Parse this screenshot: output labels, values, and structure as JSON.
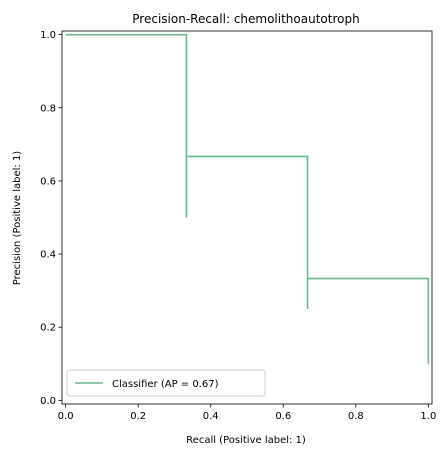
{
  "chart_data": {
    "type": "line",
    "title": "Precision-Recall: chemolithoautotroph",
    "xlabel": "Recall (Positive label: 1)",
    "ylabel": "Precision (Positive label: 1)",
    "xlim": [
      -0.01,
      1.01
    ],
    "ylim": [
      -0.01,
      1.01
    ],
    "xticks": [
      "0.0",
      "0.2",
      "0.4",
      "0.6",
      "0.8",
      "1.0"
    ],
    "yticks": [
      "0.0",
      "0.2",
      "0.4",
      "0.6",
      "0.8",
      "1.0"
    ],
    "grid": false,
    "legend_position": "lower-left",
    "series": [
      {
        "name": "Classifier (AP = 0.67)",
        "color": "#6cb88f",
        "drawstyle": "steps-post",
        "points": [
          {
            "recall": 0.0,
            "precision": 1.0
          },
          {
            "recall": 0.333,
            "precision": 1.0
          },
          {
            "recall": 0.333,
            "precision": 0.5
          },
          {
            "recall": 0.333,
            "precision": 0.667
          },
          {
            "recall": 0.667,
            "precision": 0.667
          },
          {
            "recall": 0.667,
            "precision": 0.25
          },
          {
            "recall": 0.667,
            "precision": 0.333
          },
          {
            "recall": 1.0,
            "precision": 0.333
          },
          {
            "recall": 1.0,
            "precision": 0.1
          }
        ]
      }
    ]
  }
}
